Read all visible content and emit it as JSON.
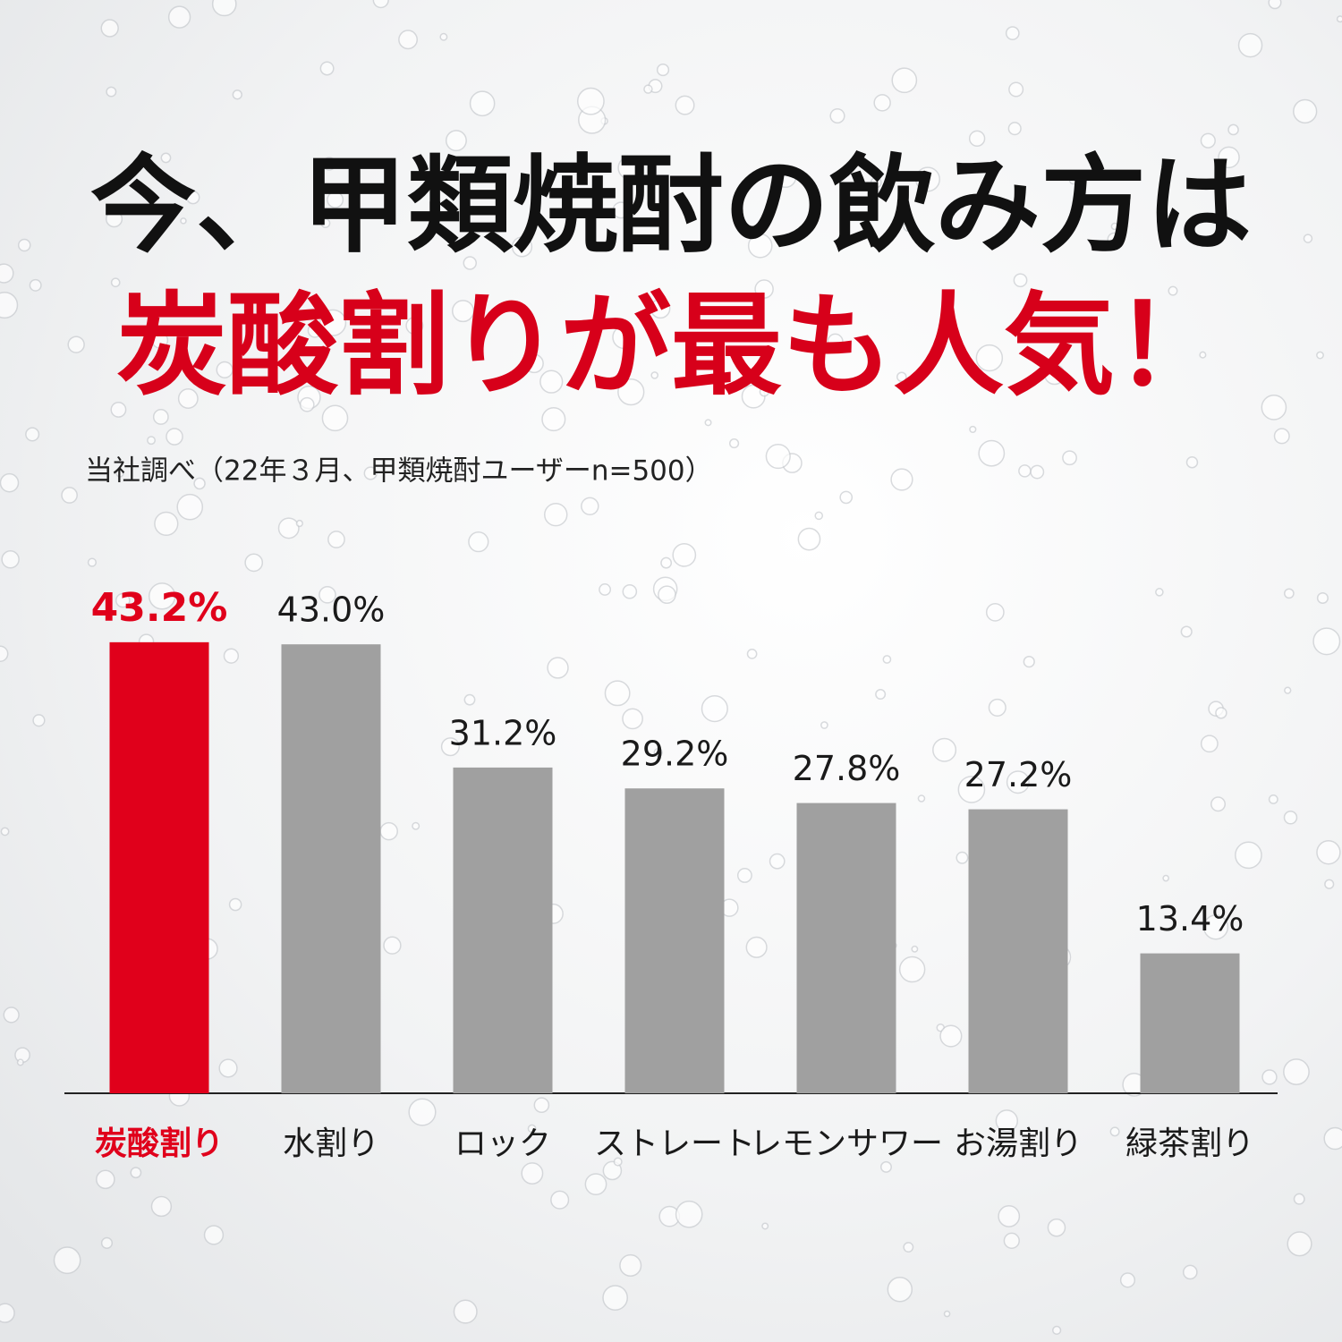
{
  "chart_data": {
    "type": "bar",
    "title": [
      "今、甲類焼酎の飲み方は",
      "炭酸割りが最も人気！"
    ],
    "note": "当社調べ（22年３月、甲類焼酎ユーザーn=500）",
    "categories": [
      "炭酸割り",
      "水割り",
      "ロック",
      "ストレート",
      "レモンサワー",
      "お湯割り",
      "緑茶割り"
    ],
    "values": [
      43.2,
      43.0,
      31.2,
      29.2,
      27.8,
      27.2,
      13.4
    ],
    "value_labels": [
      "43.2%",
      "43.0%",
      "31.2%",
      "29.2%",
      "27.8%",
      "27.2%",
      "13.4%"
    ],
    "colors": [
      "#e0001b",
      "#a0a0a0",
      "#a0a0a0",
      "#a0a0a0",
      "#a0a0a0",
      "#a0a0a0",
      "#a0a0a0"
    ],
    "label_colors": [
      "#e0001b",
      "#1a1a1a",
      "#1a1a1a",
      "#1a1a1a",
      "#1a1a1a",
      "#1a1a1a",
      "#1a1a1a"
    ]
  }
}
